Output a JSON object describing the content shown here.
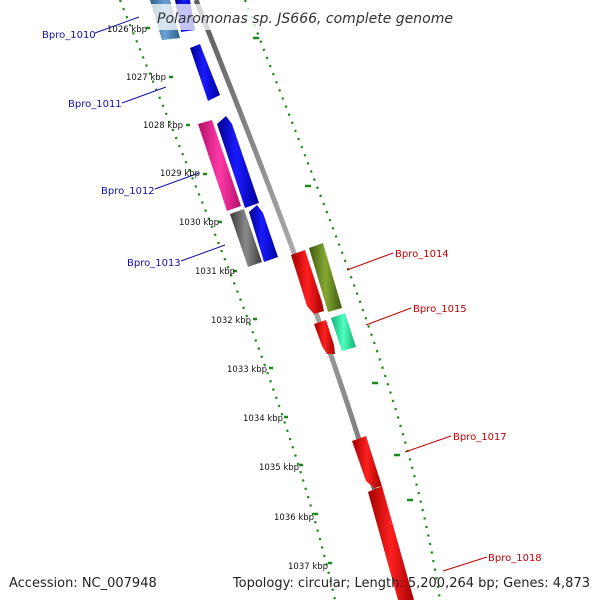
{
  "title": "Polaromonas sp. JS666, complete genome",
  "footer": {
    "accession": "Accession: NC_007948",
    "topology": "Topology: circular; Length: 5,200,264 bp; Genes: 4,873"
  },
  "kbp_ticks": [
    "1026 kbp",
    "1027 kbp",
    "1028 kbp",
    "1029 kbp",
    "1030 kbp",
    "1031 kbp",
    "1032 kbp",
    "1033 kbp",
    "1034 kbp",
    "1035 kbp",
    "1036 kbp",
    "1037 kbp"
  ],
  "genes_left": [
    {
      "label": "Bpro_1010",
      "color": "#1a1acc"
    },
    {
      "label": "Bpro_1011",
      "color": "#1a1acc"
    },
    {
      "label": "Bpro_1012",
      "color": "#1a1acc"
    },
    {
      "label": "Bpro_1013",
      "color": "#1a1acc"
    }
  ],
  "genes_right": [
    {
      "label": "Bpro_1014",
      "color": "#cc0000"
    },
    {
      "label": "Bpro_1015",
      "color": "#cc0000"
    },
    {
      "label": "Bpro_1017",
      "color": "#cc0000"
    },
    {
      "label": "Bpro_1018",
      "color": "#cc0000"
    }
  ],
  "feature_colors": {
    "blue": "#0000ee",
    "steel_blue": "#4682b4",
    "magenta": "#ee1c8c",
    "gray": "#707070",
    "red": "#ee0000",
    "olive": "#6b8e23",
    "aquamarine": "#20f0a0",
    "backbone": "#8c8c8c",
    "dots": "#1a8a1a"
  }
}
